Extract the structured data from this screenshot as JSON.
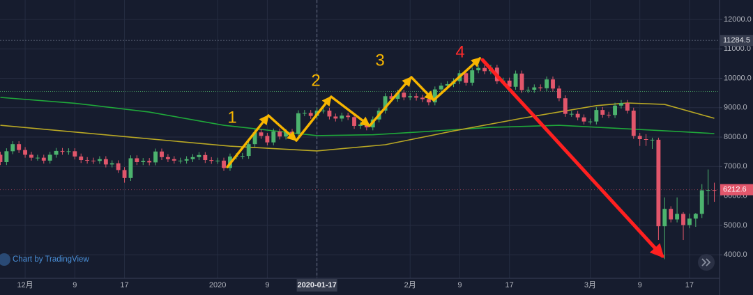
{
  "chart_data": {
    "type": "candlestick",
    "categories": [
      null,
      null,
      null,
      null,
      "12月",
      null,
      null,
      null,
      null,
      null,
      null,
      null,
      "9",
      null,
      null,
      null,
      null,
      null,
      null,
      null,
      "17",
      null,
      null,
      null,
      null,
      null,
      null,
      null,
      null,
      null,
      null,
      null,
      null,
      null,
      null,
      "2020",
      null,
      null,
      null,
      null,
      null,
      null,
      null,
      "9",
      null,
      null,
      null,
      null,
      null,
      null,
      null,
      "2020-01-17",
      null,
      null,
      null,
      null,
      null,
      null,
      null,
      null,
      null,
      null,
      null,
      null,
      null,
      null,
      "2月",
      null,
      null,
      null,
      null,
      null,
      null,
      null,
      "9",
      null,
      null,
      null,
      null,
      null,
      null,
      null,
      "17",
      null,
      null,
      null,
      null,
      null,
      null,
      null,
      null,
      null,
      null,
      null,
      null,
      "3月",
      null,
      null,
      null,
      null,
      null,
      null,
      null,
      "9",
      null,
      null,
      null,
      null,
      null,
      null,
      null,
      "17",
      null,
      null,
      null,
      null
    ],
    "open": [
      7400,
      7150,
      7520,
      7760,
      7560,
      7400,
      7300,
      7300,
      7200,
      7400,
      7530,
      7500,
      7520,
      7340,
      7220,
      7200,
      7190,
      7250,
      7070,
      7110,
      6880,
      6610,
      7280,
      7150,
      7190,
      7140,
      7510,
      7320,
      7250,
      7200,
      7200,
      7250,
      7320,
      7390,
      7220,
      7190,
      7200,
      6950,
      7340,
      7350,
      7360,
      7760,
      8160,
      8040,
      7820,
      8190,
      8020,
      8180,
      8110,
      8810,
      8820,
      8720,
      8900,
      8900,
      8700,
      8630,
      8730,
      8680,
      8380,
      8430,
      8330,
      8600,
      8900,
      9390,
      9300,
      9510,
      9350,
      9390,
      9340,
      9290,
      9180,
      9620,
      9750,
      9800,
      9900,
      10170,
      9850,
      10270,
      10350,
      10240,
      10360,
      9900,
      9920,
      9710,
      10160,
      9600,
      9610,
      9690,
      9660,
      9960,
      9650,
      9320,
      8790,
      8790,
      8670,
      8530,
      8530,
      8920,
      8760,
      8750,
      9070,
      9160,
      8900,
      8040,
      7930,
      7910,
      7910,
      4970,
      5560,
      5200,
      5390,
      5010,
      5230,
      5390,
      6190,
      6200
    ],
    "high": [
      7500,
      7620,
      7860,
      7860,
      7660,
      7500,
      7400,
      7400,
      7500,
      7630,
      7630,
      7620,
      7620,
      7440,
      7320,
      7300,
      7350,
      7350,
      7210,
      7210,
      6980,
      7380,
      7380,
      7290,
      7290,
      7610,
      7610,
      7420,
      7350,
      7300,
      7350,
      7420,
      7490,
      7490,
      7320,
      7300,
      7300,
      7440,
      7450,
      7460,
      7860,
      8260,
      8260,
      8140,
      8290,
      8290,
      8280,
      8280,
      8910,
      8920,
      8920,
      9000,
      9000,
      9000,
      8800,
      8830,
      8830,
      8780,
      8530,
      8530,
      8700,
      9000,
      9490,
      9490,
      9610,
      9610,
      9490,
      9490,
      9440,
      9390,
      9720,
      9850,
      9900,
      10000,
      10270,
      10270,
      10370,
      10450,
      10450,
      10460,
      10460,
      10020,
      10020,
      10260,
      10260,
      9710,
      9790,
      9790,
      10060,
      10060,
      9750,
      9420,
      8890,
      8890,
      8770,
      8630,
      9020,
      9020,
      8860,
      9170,
      9260,
      9260,
      9000,
      8140,
      8100,
      7980,
      7980,
      5950,
      5650,
      5950,
      5450,
      5400,
      5420,
      6400,
      6900,
      6450
    ],
    "low": [
      7050,
      7050,
      7420,
      7460,
      7300,
      7200,
      7200,
      7100,
      7100,
      7300,
      7400,
      7400,
      7240,
      7120,
      7100,
      7090,
      7090,
      6970,
      6970,
      6780,
      6450,
      6510,
      7050,
      7050,
      7040,
      7040,
      7220,
      7150,
      7100,
      7100,
      7100,
      7150,
      7220,
      7120,
      7090,
      7090,
      6850,
      6850,
      7240,
      7250,
      7260,
      7660,
      7940,
      7720,
      7720,
      7920,
      7920,
      8010,
      8010,
      8710,
      8620,
      8620,
      8800,
      8600,
      8530,
      8530,
      8580,
      8280,
      8280,
      8230,
      8230,
      8500,
      8800,
      9200,
      9200,
      9250,
      9250,
      9240,
      9190,
      9080,
      9080,
      9520,
      9650,
      9700,
      9800,
      9750,
      9750,
      10170,
      10140,
      10140,
      9800,
      9800,
      9610,
      9610,
      9500,
      9500,
      9510,
      9560,
      9560,
      9550,
      9220,
      8690,
      8690,
      8570,
      8430,
      8430,
      8430,
      8660,
      8650,
      8650,
      8970,
      8800,
      7940,
      7700,
      7700,
      7600,
      4500,
      3850,
      5100,
      5100,
      4500,
      4900,
      4950,
      5250,
      5700,
      5800
    ],
    "close": [
      7150,
      7520,
      7760,
      7560,
      7400,
      7300,
      7300,
      7200,
      7400,
      7530,
      7500,
      7520,
      7340,
      7220,
      7200,
      7190,
      7250,
      7070,
      7110,
      6880,
      6610,
      7280,
      7150,
      7190,
      7140,
      7510,
      7320,
      7250,
      7200,
      7200,
      7250,
      7320,
      7390,
      7220,
      7190,
      7200,
      6950,
      7340,
      7350,
      7360,
      7760,
      8160,
      8040,
      7820,
      8190,
      8020,
      8180,
      8110,
      8810,
      8820,
      8720,
      8900,
      8900,
      8700,
      8630,
      8730,
      8680,
      8380,
      8430,
      8330,
      8600,
      8900,
      9390,
      9300,
      9510,
      9350,
      9390,
      9340,
      9290,
      9180,
      9620,
      9750,
      9800,
      9900,
      10170,
      9850,
      10270,
      10350,
      10240,
      10360,
      9900,
      9920,
      9710,
      10160,
      9600,
      9610,
      9690,
      9660,
      9960,
      9650,
      9320,
      8790,
      8790,
      8670,
      8530,
      8530,
      8920,
      8760,
      8750,
      9070,
      9160,
      8900,
      8040,
      7930,
      7910,
      7910,
      4970,
      5560,
      5200,
      5390,
      5010,
      5230,
      5390,
      6190,
      6200,
      6190
    ],
    "up_color": "#4cb36e",
    "down_color": "#e2566b",
    "moving_averages": [
      {
        "color": "#1fa83a",
        "x": [
          0,
          12,
          24,
          36,
          51,
          60,
          67,
          79,
          90,
          101,
          110,
          115
        ],
        "values": [
          9350,
          9150,
          8850,
          8400,
          8050,
          8080,
          8170,
          8330,
          8400,
          8280,
          8180,
          8120
        ]
      },
      {
        "color": "#b9a824",
        "x": [
          0,
          22,
          37,
          51,
          62,
          73,
          84,
          96,
          101,
          107,
          115
        ],
        "values": [
          8400,
          7980,
          7690,
          7530,
          7740,
          8210,
          8640,
          9070,
          9160,
          9110,
          8640
        ]
      }
    ],
    "ylim": [
      3200,
      12660
    ],
    "yticks": [
      {
        "value": 12000,
        "label": "12000.0"
      },
      {
        "value": 11000,
        "label": "11000.0"
      },
      {
        "value": 10000,
        "label": "10000.0"
      },
      {
        "value": 9000,
        "label": "9000.0"
      },
      {
        "value": 8000,
        "label": "8000.0"
      },
      {
        "value": 7000,
        "label": "7000.0"
      },
      {
        "value": 6000,
        "label": "6000.0"
      },
      {
        "value": 5000,
        "label": "5000.0"
      },
      {
        "value": 4000,
        "label": "4000.0"
      }
    ],
    "grid": true,
    "marker_price": {
      "value": 11284.5,
      "label": "11284.5"
    },
    "level_line": 9550,
    "last_price": {
      "value": 6212.6,
      "label": "6212.6"
    },
    "crosshair_index": 51,
    "annotations": [
      {
        "text": "1",
        "color": "#f5b400"
      },
      {
        "text": "2",
        "color": "#f5b400"
      },
      {
        "text": "3",
        "color": "#f5b400"
      },
      {
        "text": "4",
        "color": "#ff2a2a"
      }
    ],
    "watermark": "Chart by TradingView"
  }
}
